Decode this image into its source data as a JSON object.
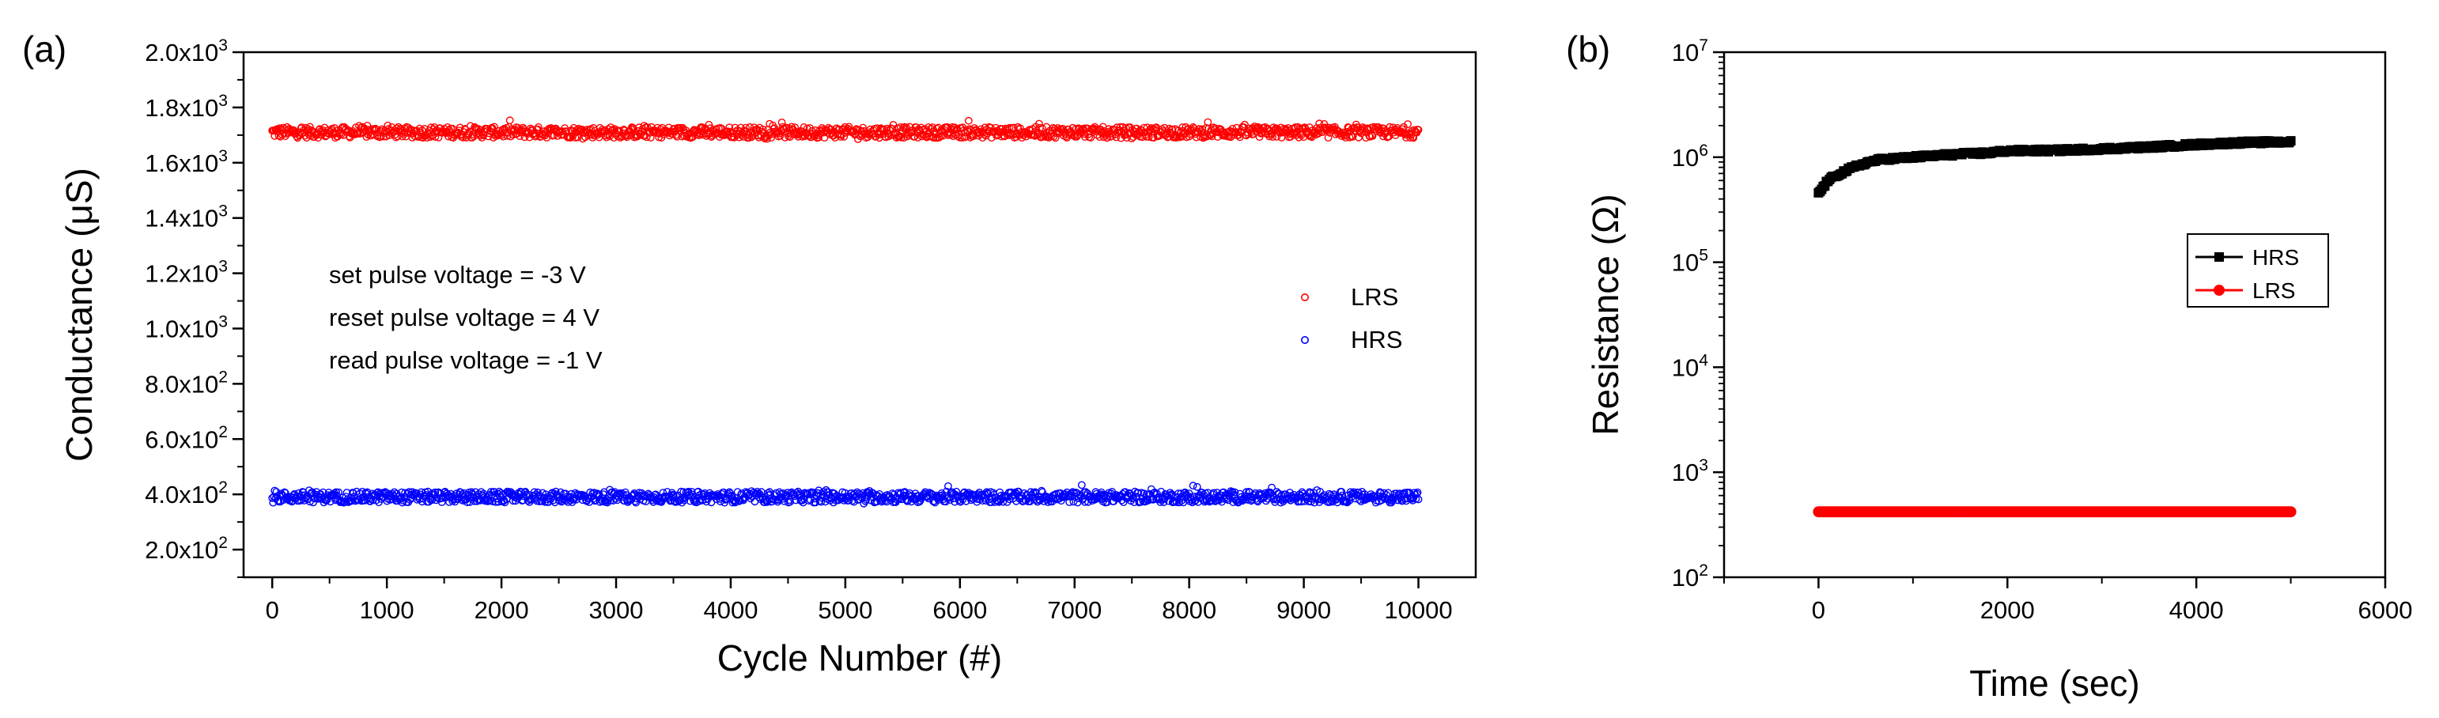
{
  "chart_data": [
    {
      "panel_label": "(a)",
      "type": "scatter",
      "xlabel": "Cycle Number (#)",
      "ylabel": "Conductance (μS)",
      "xlim": [
        -250,
        10500
      ],
      "ylim": [
        100,
        2000
      ],
      "xticks": [
        0,
        1000,
        2000,
        3000,
        4000,
        5000,
        6000,
        7000,
        8000,
        9000,
        10000
      ],
      "xtick_labels": [
        "0",
        "1000",
        "2000",
        "3000",
        "4000",
        "5000",
        "6000",
        "7000",
        "8000",
        "9000",
        "10000"
      ],
      "yticks": [
        200,
        400,
        600,
        800,
        1000,
        1200,
        1400,
        1600,
        1800,
        2000
      ],
      "ytick_labels": [
        {
          "mant": "2.0x10",
          "exp": "2"
        },
        {
          "mant": "4.0x10",
          "exp": "2"
        },
        {
          "mant": "6.0x10",
          "exp": "2"
        },
        {
          "mant": "8.0x10",
          "exp": "2"
        },
        {
          "mant": "1.0x10",
          "exp": "3"
        },
        {
          "mant": "1.2x10",
          "exp": "3"
        },
        {
          "mant": "1.4x10",
          "exp": "3"
        },
        {
          "mant": "1.6x10",
          "exp": "3"
        },
        {
          "mant": "1.8x10",
          "exp": "3"
        },
        {
          "mant": "2.0x10",
          "exp": "3"
        }
      ],
      "series": [
        {
          "name": "LRS",
          "color": "#ff0000",
          "x_range": [
            0,
            10000
          ],
          "mean": 1710,
          "spread": 20
        },
        {
          "name": "HRS",
          "color": "#0000ff",
          "x_range": [
            0,
            10000
          ],
          "mean": 390,
          "spread": 20
        }
      ],
      "legend_position": "right",
      "annotations": [
        "set pulse voltage = -3 V",
        "reset pulse voltage = 4 V",
        "read pulse voltage = -1 V"
      ]
    },
    {
      "panel_label": "(b)",
      "type": "line",
      "xlabel": "Time (sec)",
      "ylabel": "Resistance (Ω)",
      "xlim": [
        -1000,
        6000
      ],
      "ylim": [
        100,
        10000000
      ],
      "yscale": "log",
      "xticks": [
        0,
        2000,
        4000,
        6000
      ],
      "xtick_labels": [
        "0",
        "2000",
        "4000",
        "6000"
      ],
      "yticks": [
        100,
        1000,
        10000,
        100000,
        1000000,
        10000000
      ],
      "ytick_labels": [
        {
          "mant": "10",
          "exp": "2"
        },
        {
          "mant": "10",
          "exp": "3"
        },
        {
          "mant": "10",
          "exp": "4"
        },
        {
          "mant": "10",
          "exp": "5"
        },
        {
          "mant": "10",
          "exp": "6"
        },
        {
          "mant": "10",
          "exp": "7"
        }
      ],
      "series": [
        {
          "name": "HRS",
          "color": "#000000",
          "marker": "square",
          "x": [
            0,
            50,
            100,
            200,
            300,
            400,
            500,
            600,
            700,
            800,
            1000,
            1200,
            1500,
            1800,
            2000,
            2500,
            3000,
            3500,
            4000,
            4500,
            5000
          ],
          "y": [
            450000,
            520000,
            600000,
            680000,
            750000,
            820000,
            880000,
            930000,
            960000,
            970000,
            1000000,
            1030000,
            1070000,
            1100000,
            1150000,
            1160000,
            1200000,
            1250000,
            1320000,
            1380000,
            1400000
          ]
        },
        {
          "name": "LRS",
          "color": "#ff0000",
          "marker": "circle",
          "x": [
            0,
            5000
          ],
          "y": [
            420,
            420
          ]
        }
      ],
      "legend_position": "right"
    }
  ]
}
